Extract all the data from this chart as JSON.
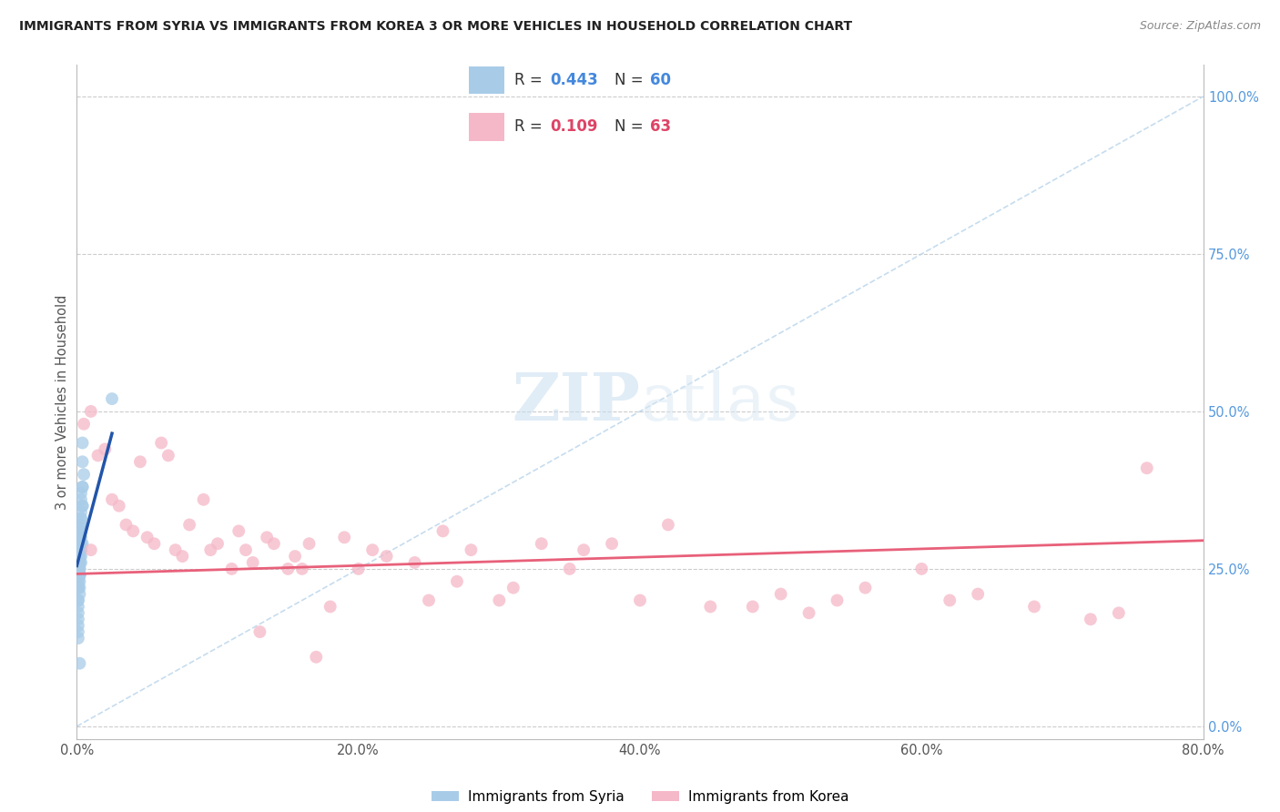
{
  "title": "IMMIGRANTS FROM SYRIA VS IMMIGRANTS FROM KOREA 3 OR MORE VEHICLES IN HOUSEHOLD CORRELATION CHART",
  "source": "Source: ZipAtlas.com",
  "ylabel": "3 or more Vehicles in Household",
  "xlim": [
    0.0,
    0.8
  ],
  "ylim": [
    -0.02,
    1.05
  ],
  "xtick_vals": [
    0.0,
    0.2,
    0.4,
    0.6,
    0.8
  ],
  "xtick_labels": [
    "0.0%",
    "20.0%",
    "40.0%",
    "60.0%",
    "80.0%"
  ],
  "ytick_vals": [
    0.0,
    0.25,
    0.5,
    0.75,
    1.0
  ],
  "ytick_labels": [
    "0.0%",
    "25.0%",
    "50.0%",
    "75.0%",
    "100.0%"
  ],
  "syria_R": 0.443,
  "syria_N": 60,
  "korea_R": 0.109,
  "korea_N": 63,
  "syria_color": "#a8cce8",
  "korea_color": "#f5b8c8",
  "syria_line_color": "#2255aa",
  "korea_line_color": "#e8607a",
  "dashed_line_color": "#b8d4ea",
  "background_color": "#ffffff",
  "watermark_zip": "ZIP",
  "watermark_atlas": "atlas",
  "syria_scatter_x": [
    0.001,
    0.002,
    0.001,
    0.003,
    0.002,
    0.001,
    0.004,
    0.003,
    0.002,
    0.001,
    0.003,
    0.002,
    0.001,
    0.002,
    0.003,
    0.001,
    0.002,
    0.003,
    0.004,
    0.002,
    0.001,
    0.003,
    0.002,
    0.001,
    0.004,
    0.003,
    0.002,
    0.001,
    0.003,
    0.002,
    0.001,
    0.002,
    0.003,
    0.001,
    0.004,
    0.002,
    0.001,
    0.003,
    0.002,
    0.001,
    0.004,
    0.003,
    0.002,
    0.005,
    0.004,
    0.003,
    0.002,
    0.001,
    0.003,
    0.002,
    0.001,
    0.002,
    0.004,
    0.003,
    0.001,
    0.002,
    0.025,
    0.001,
    0.002,
    0.003
  ],
  "syria_scatter_y": [
    0.27,
    0.26,
    0.25,
    0.28,
    0.24,
    0.3,
    0.29,
    0.27,
    0.26,
    0.22,
    0.28,
    0.25,
    0.23,
    0.26,
    0.3,
    0.28,
    0.27,
    0.32,
    0.35,
    0.29,
    0.2,
    0.31,
    0.24,
    0.18,
    0.38,
    0.33,
    0.28,
    0.26,
    0.36,
    0.3,
    0.25,
    0.22,
    0.34,
    0.19,
    0.42,
    0.28,
    0.17,
    0.31,
    0.23,
    0.16,
    0.45,
    0.37,
    0.21,
    0.4,
    0.35,
    0.29,
    0.24,
    0.14,
    0.33,
    0.27,
    0.22,
    0.25,
    0.38,
    0.32,
    0.2,
    0.1,
    0.52,
    0.15,
    0.28,
    0.26
  ],
  "korea_scatter_x": [
    0.005,
    0.01,
    0.015,
    0.02,
    0.025,
    0.03,
    0.035,
    0.04,
    0.045,
    0.05,
    0.055,
    0.06,
    0.065,
    0.07,
    0.075,
    0.08,
    0.09,
    0.095,
    0.1,
    0.11,
    0.115,
    0.12,
    0.125,
    0.13,
    0.135,
    0.14,
    0.15,
    0.155,
    0.16,
    0.165,
    0.17,
    0.18,
    0.19,
    0.2,
    0.21,
    0.22,
    0.24,
    0.25,
    0.26,
    0.27,
    0.28,
    0.3,
    0.31,
    0.33,
    0.35,
    0.36,
    0.38,
    0.4,
    0.42,
    0.45,
    0.48,
    0.5,
    0.52,
    0.54,
    0.56,
    0.6,
    0.62,
    0.64,
    0.68,
    0.72,
    0.74,
    0.76,
    0.01
  ],
  "korea_scatter_y": [
    0.48,
    0.5,
    0.43,
    0.44,
    0.36,
    0.35,
    0.32,
    0.31,
    0.42,
    0.3,
    0.29,
    0.45,
    0.43,
    0.28,
    0.27,
    0.32,
    0.36,
    0.28,
    0.29,
    0.25,
    0.31,
    0.28,
    0.26,
    0.15,
    0.3,
    0.29,
    0.25,
    0.27,
    0.25,
    0.29,
    0.11,
    0.19,
    0.3,
    0.25,
    0.28,
    0.27,
    0.26,
    0.2,
    0.31,
    0.23,
    0.28,
    0.2,
    0.22,
    0.29,
    0.25,
    0.28,
    0.29,
    0.2,
    0.32,
    0.19,
    0.19,
    0.21,
    0.18,
    0.2,
    0.22,
    0.25,
    0.2,
    0.21,
    0.19,
    0.17,
    0.18,
    0.41,
    0.28
  ],
  "syria_regline_x": [
    0.0,
    0.025
  ],
  "syria_regline_y": [
    0.255,
    0.465
  ],
  "korea_regline_x": [
    0.0,
    0.8
  ],
  "korea_regline_y": [
    0.242,
    0.295
  ],
  "diag_line_x": [
    0.0,
    0.8
  ],
  "diag_line_y": [
    0.0,
    1.0
  ]
}
